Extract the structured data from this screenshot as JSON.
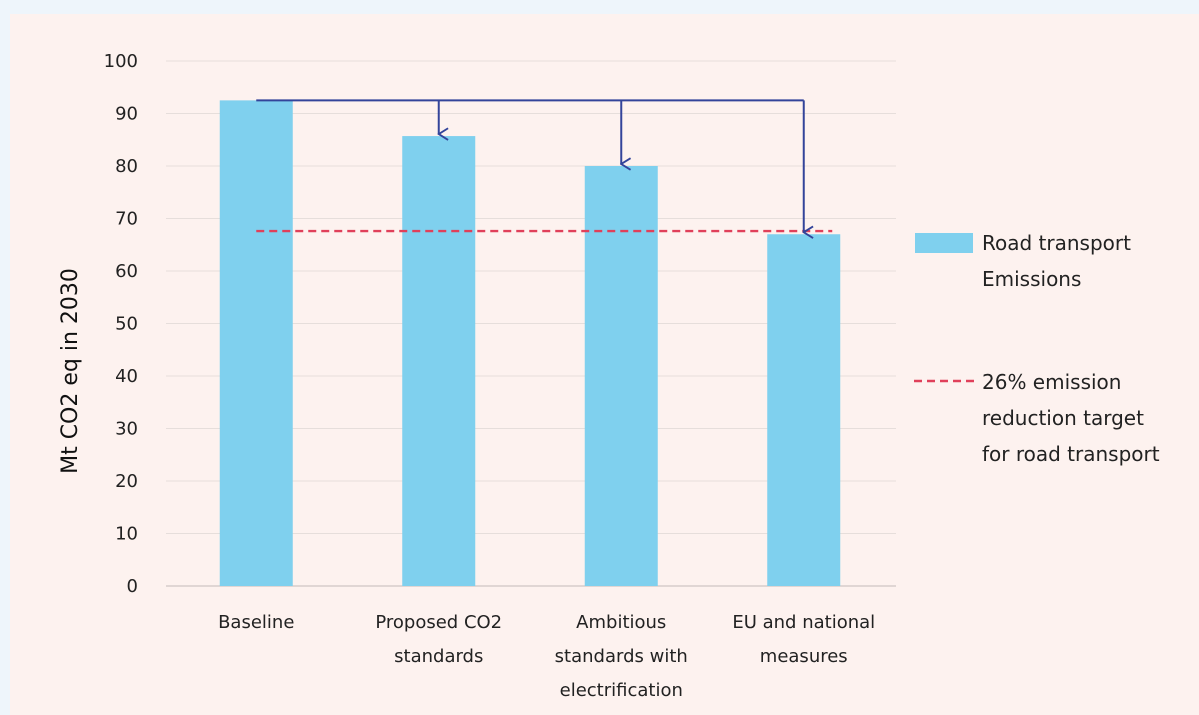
{
  "chart_data": {
    "type": "bar",
    "categories": [
      [
        "Baseline"
      ],
      [
        "Proposed CO2",
        "standards"
      ],
      [
        "Ambitious",
        "standards with",
        "electrification"
      ],
      [
        "EU and national",
        "measures"
      ]
    ],
    "values": [
      92.5,
      85.7,
      80.0,
      67.0
    ],
    "ylabel": "Mt CO2 eq in 2030",
    "ylim": [
      0,
      100
    ],
    "yticks": [
      0,
      10,
      20,
      30,
      40,
      50,
      60,
      70,
      80,
      90,
      100
    ],
    "grid": true,
    "legend_position": "right",
    "legend": [
      {
        "type": "bar",
        "lines": [
          "Road transport",
          "Emissions"
        ]
      },
      {
        "type": "dashed-line",
        "lines": [
          "26% emission",
          "reduction target",
          "for road transport"
        ]
      }
    ],
    "target_line": {
      "value": 67.6
    },
    "annotations": {
      "type": "arrows",
      "from": "Baseline",
      "to": [
        "Proposed CO2 standards",
        "Ambitious standards with electrification",
        "EU and national measures"
      ]
    }
  },
  "colors": {
    "bar": "#7fd0ee",
    "target_line": "#e0405a",
    "arrow": "#33449a",
    "grid": "#e6dedb",
    "axis": "#cfc6c3"
  }
}
